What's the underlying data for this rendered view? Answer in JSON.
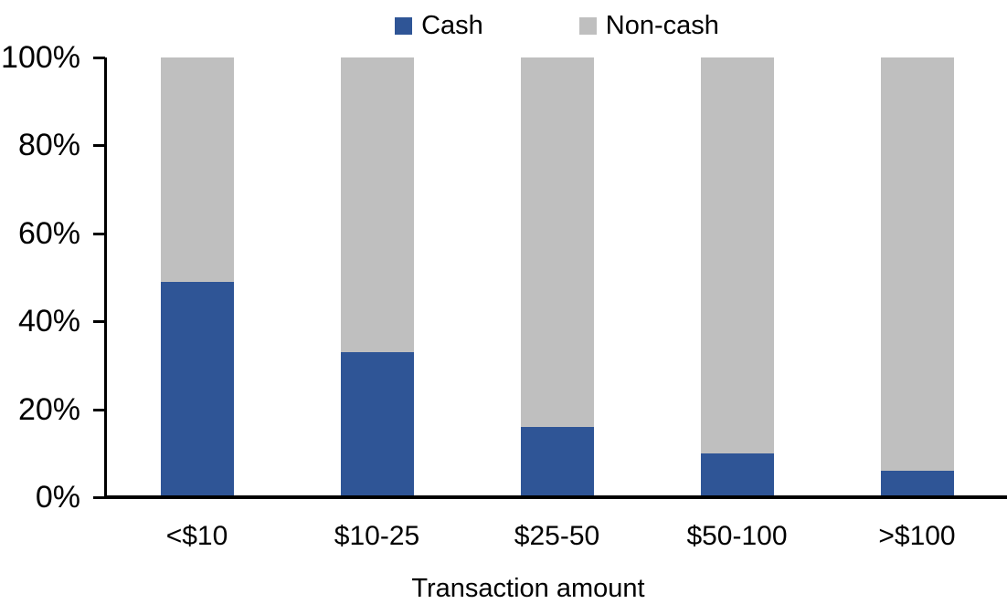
{
  "chart_data": {
    "type": "bar",
    "variant": "100-percent-stacked-column",
    "title": "",
    "xlabel": "Transaction amount",
    "ylabel": "",
    "categories": [
      "<$10",
      "$10-25",
      "$25-50",
      "$50-100",
      ">$100"
    ],
    "series": [
      {
        "name": "Cash",
        "color": "#2F5596",
        "values": [
          49,
          33,
          16,
          10,
          6
        ]
      },
      {
        "name": "Non-cash",
        "color": "#BFBFBF",
        "values": [
          51,
          67,
          84,
          90,
          94
        ]
      }
    ],
    "ylim": [
      0,
      100
    ],
    "y_ticks": [
      "0%",
      "20%",
      "40%",
      "60%",
      "80%",
      "100%"
    ],
    "grid": false,
    "legend_position": "top",
    "axis_color": "#000000",
    "text_color": "#000000",
    "background_color": "#FFFFFF"
  }
}
